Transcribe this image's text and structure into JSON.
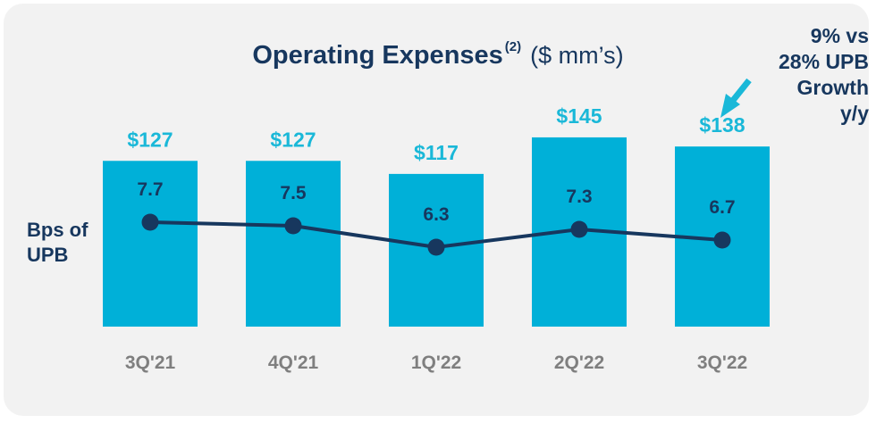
{
  "chart_data": {
    "type": "bar",
    "title": "Operating Expenses",
    "title_superscript": "(2)",
    "title_unit": "($ mm’s)",
    "categories": [
      "3Q'21",
      "4Q'21",
      "1Q'22",
      "2Q'22",
      "3Q'22"
    ],
    "series": [
      {
        "values": [
          127,
          127,
          117,
          145,
          138
        ],
        "labels": [
          "$127",
          "$127",
          "$117",
          "$145",
          "$138"
        ],
        "color": "#00b0d8",
        "label_color": "#1ab8d8"
      }
    ],
    "line_series": {
      "name": "Bps of UPB",
      "values": [
        7.7,
        7.5,
        6.3,
        7.3,
        6.7
      ],
      "labels": [
        "7.7",
        "7.5",
        "6.3",
        "7.3",
        "6.7"
      ],
      "color": "#17375e"
    },
    "annotation": {
      "text": "9% vs\n28% UPB\nGrowth\ny/y",
      "arrow_color": "#1ab8d8"
    },
    "ylim": [
      0,
      160
    ],
    "grid": false,
    "legend": "none"
  },
  "colors": {
    "navy": "#17375e",
    "bar": "#00b0d8",
    "tick": "#7f7f7f"
  }
}
